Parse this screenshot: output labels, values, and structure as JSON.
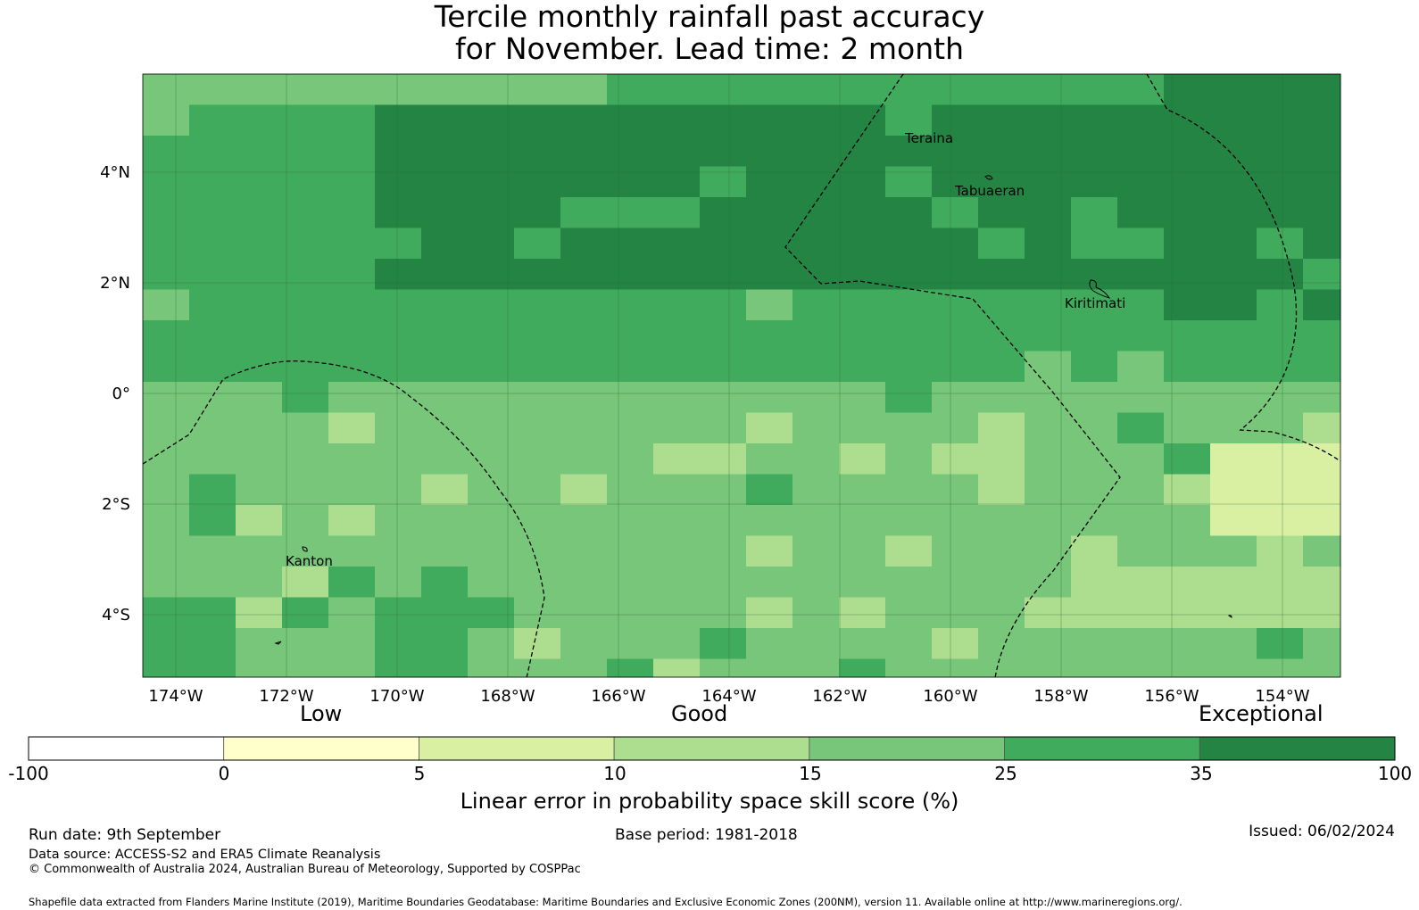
{
  "title": {
    "line1": "Tercile monthly rainfall past accuracy",
    "line2": "for November. Lead time: 2 month"
  },
  "map": {
    "lon_range": [
      -174.6,
      -153.1
    ],
    "lat_range": [
      -5.1,
      5.8
    ],
    "grid_resolution_deg": 0.833,
    "x_ticks": [
      "174°W",
      "172°W",
      "170°W",
      "168°W",
      "166°W",
      "164°W",
      "162°W",
      "160°W",
      "158°W",
      "156°W",
      "154°W"
    ],
    "y_ticks": [
      "4°N",
      "2°N",
      "0°",
      "2°S",
      "4°S"
    ],
    "place_labels": [
      "Teraina",
      "Tabuaeran",
      "Kiritimati",
      "Kanton"
    ],
    "dominant_categories": {
      "north_of_equator": "25 to 35 and 35 to 100",
      "south_of_equator": "15 to 25"
    }
  },
  "colorbar": {
    "qualitative_labels": [
      "Low",
      "Good",
      "Exceptional"
    ],
    "tick_labels": [
      "-100",
      "0",
      "5",
      "10",
      "15",
      "25",
      "35",
      "100"
    ],
    "colors": [
      "#ffffff",
      "#ffffcc",
      "#d9f0a3",
      "#addd8e",
      "#78c679",
      "#41ab5d",
      "#238443"
    ],
    "label": "Linear error in probability space skill score (%)"
  },
  "footer": {
    "run_date": "Run date: 9th September",
    "base_period": "Base period: 1981-2018",
    "issued": "Issued: 06/02/2024",
    "data_source": "Data source: ACCESS-S2 and ERA5 Climate Reanalysis",
    "copyright": "© Commonwealth of Australia 2024, Australian Bureau of Meteorology, Supported by COSPPac",
    "shapefile": "Shapefile data extracted from Flanders Marine Institute (2019), Maritime Boundaries Geodatabase: Maritime Boundaries and Exclusive Economic Zones (200NM), version 11. Available online at http://www.marineregions.org/."
  }
}
